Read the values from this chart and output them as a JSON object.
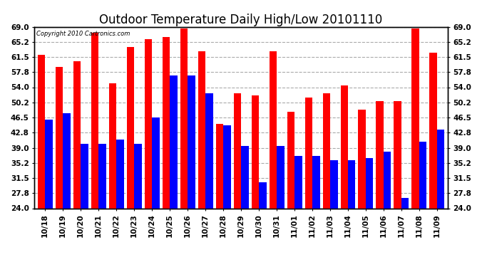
{
  "title": "Outdoor Temperature Daily High/Low 20101110",
  "copyright": "Copyright 2010 Cartronics.com",
  "dates": [
    "10/18",
    "10/19",
    "10/20",
    "10/21",
    "10/22",
    "10/23",
    "10/24",
    "10/25",
    "10/26",
    "10/27",
    "10/28",
    "10/29",
    "10/30",
    "10/31",
    "11/01",
    "11/02",
    "11/03",
    "11/04",
    "11/05",
    "11/06",
    "11/07",
    "11/08",
    "11/09"
  ],
  "highs": [
    62.0,
    59.0,
    60.5,
    67.5,
    55.0,
    64.0,
    66.0,
    66.5,
    68.5,
    63.0,
    45.0,
    52.5,
    52.0,
    63.0,
    48.0,
    51.5,
    52.5,
    54.5,
    48.5,
    50.5,
    50.5,
    68.5,
    62.5
  ],
  "lows": [
    46.0,
    47.5,
    40.0,
    40.0,
    41.0,
    40.0,
    46.5,
    57.0,
    57.0,
    52.5,
    44.5,
    39.5,
    30.5,
    39.5,
    37.0,
    37.0,
    36.0,
    36.0,
    36.5,
    38.0,
    26.5,
    40.5,
    43.5
  ],
  "yticks": [
    24.0,
    27.8,
    31.5,
    35.2,
    39.0,
    42.8,
    46.5,
    50.2,
    54.0,
    57.8,
    61.5,
    65.2,
    69.0
  ],
  "ymin": 24.0,
  "ymax": 69.0,
  "bar_width": 0.42,
  "high_color": "#ff0000",
  "low_color": "#0000ff",
  "bg_color": "#ffffff",
  "grid_color": "#aaaaaa",
  "title_fontsize": 12,
  "tick_fontsize": 7.5
}
